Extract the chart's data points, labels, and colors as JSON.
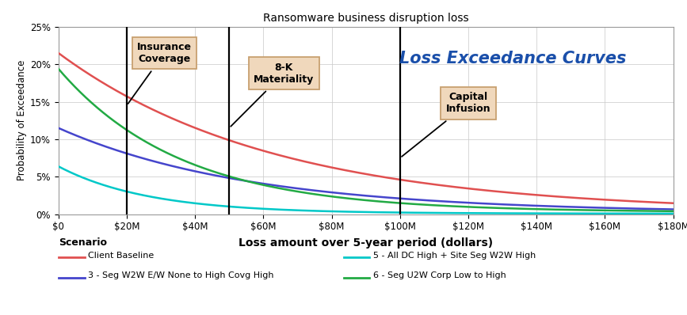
{
  "title": "Ransomware business disruption loss",
  "xlabel": "Loss amount over 5-year period (dollars)",
  "ylabel": "Probability of Exceedance",
  "xlim": [
    0,
    180000000
  ],
  "ylim": [
    0,
    0.25
  ],
  "x_ticks": [
    0,
    20000000,
    40000000,
    60000000,
    80000000,
    100000000,
    120000000,
    140000000,
    160000000,
    180000000
  ],
  "x_tick_labels": [
    "$0",
    "$20M",
    "$40M",
    "$60M",
    "$80M",
    "$100M",
    "$120M",
    "$140M",
    "$160M",
    "$180M"
  ],
  "y_ticks": [
    0.0,
    0.05,
    0.1,
    0.15,
    0.2,
    0.25
  ],
  "y_tick_labels": [
    "0%",
    "5%",
    "10%",
    "15%",
    "20%",
    "25%"
  ],
  "vlines": [
    20000000,
    50000000,
    100000000
  ],
  "annotation_box_color": "#f0d8bc",
  "annotation_box_edge": "#c8a070",
  "colors": {
    "baseline": "#e05050",
    "s3": "#4545cc",
    "s5": "#00c8c8",
    "s6": "#22aa44"
  },
  "labels": {
    "baseline": "Client Baseline",
    "s3": "3 - Seg W2W E/W None to High Covg High",
    "s5": "5 - All DC High + Site Seg W2W High",
    "s6": "6 - Seg U2W Corp Low to High"
  },
  "loss_exceedance_text": "Loss Exceedance Curves",
  "loss_exceedance_color": "#1a4faa",
  "legend_title": "Scenario",
  "background_color": "#ffffff",
  "grid_color": "#cccccc"
}
